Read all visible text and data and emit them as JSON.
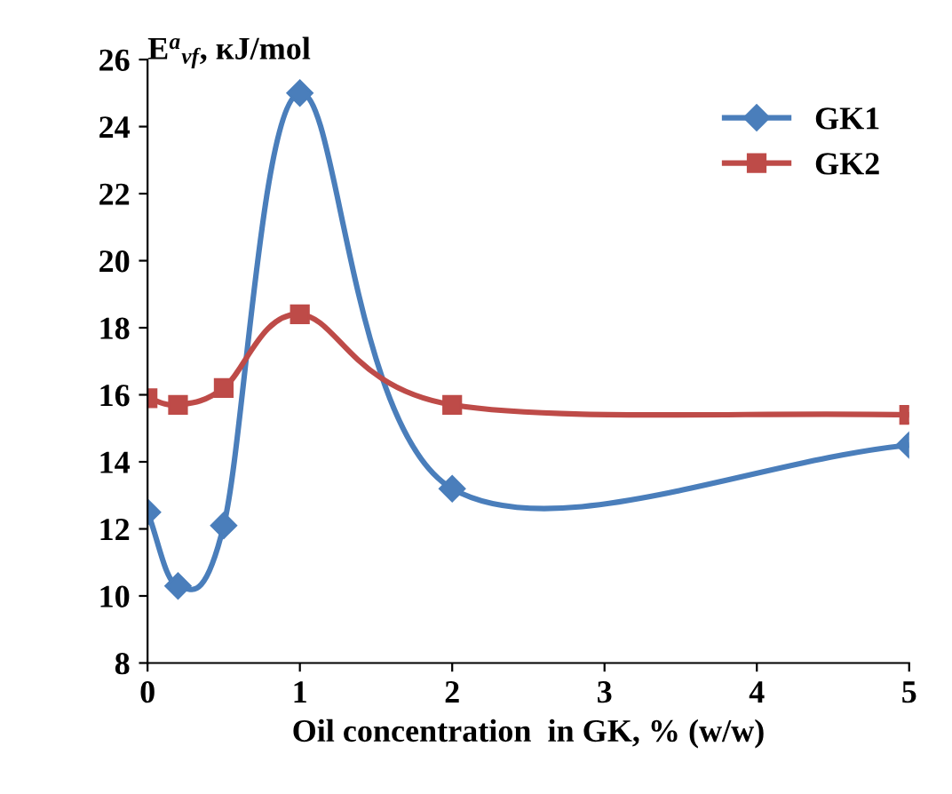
{
  "chart_data": {
    "type": "line",
    "ylabel": "E$^{a}$$_{vf}$, кJ/mol",
    "xlabel": "Oil concentration  in GK, % (w/w)",
    "xlim": [
      0,
      5
    ],
    "xticks": [
      0,
      1,
      2,
      3,
      4,
      5
    ],
    "ylim": [
      8,
      26
    ],
    "yticks": [
      8,
      10,
      12,
      14,
      16,
      18,
      20,
      22,
      24,
      26
    ],
    "grid": false,
    "legend": "top right",
    "line_style": "solid",
    "series": [
      {
        "name": "GK1",
        "color": "#4a7ebb",
        "marker": "diamond",
        "x": [
          0,
          0.2,
          0.5,
          1,
          2,
          5
        ],
        "values": [
          12.5,
          10.3,
          12.1,
          25.0,
          13.2,
          14.5
        ]
      },
      {
        "name": "GK2",
        "color": "#be4b48",
        "marker": "square",
        "x": [
          0,
          0.2,
          0.5,
          1,
          2,
          5
        ],
        "values": [
          15.9,
          15.7,
          16.2,
          18.4,
          15.7,
          15.4
        ]
      }
    ]
  }
}
